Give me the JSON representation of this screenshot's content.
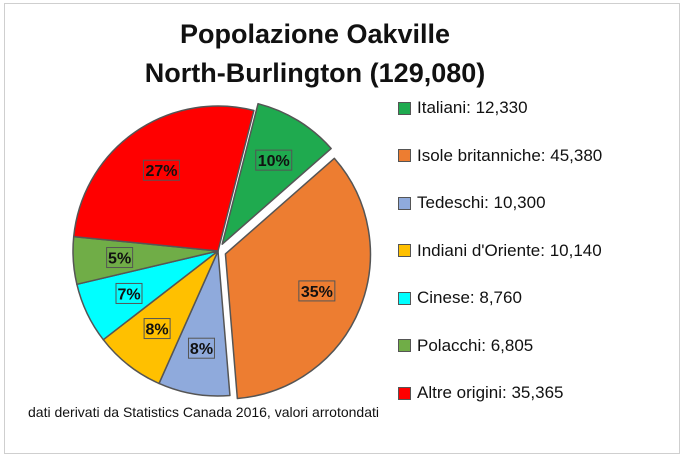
{
  "chart_data": {
    "type": "pie",
    "title": "Popolazione Oakville North-Burlington (129,080)",
    "title_lines": [
      "Popolazione Oakville",
      "North-Burlington (129,080)"
    ],
    "source_note": "dati derivati da Statistics Canada 2016, valori arrotondati",
    "legend_position": "right",
    "slices": [
      {
        "name": "Italiani",
        "value": 12330,
        "value_text": "12,330",
        "percent_label": "10%",
        "color": "#1faa4f",
        "exploded": true
      },
      {
        "name": "Isole britanniche",
        "value": 45380,
        "value_text": "45,380",
        "percent_label": "35%",
        "color": "#ed7d31",
        "exploded": true
      },
      {
        "name": "Tedeschi",
        "value": 10300,
        "value_text": "10,300",
        "percent_label": "8%",
        "color": "#8faadc",
        "exploded": false
      },
      {
        "name": "Indiani d'Oriente",
        "value": 10140,
        "value_text": "10,140",
        "percent_label": "8%",
        "color": "#ffc000",
        "exploded": false
      },
      {
        "name": "Cinese",
        "value": 8760,
        "value_text": "8,760",
        "percent_label": "7%",
        "color": "#00ffff",
        "exploded": false
      },
      {
        "name": "Polacchi",
        "value": 6805,
        "value_text": "6,805",
        "percent_label": "5%",
        "color": "#70ad47",
        "exploded": false
      },
      {
        "name": "Altre origini",
        "value": 35365,
        "value_text": "35,365",
        "percent_label": "27%",
        "color": "#ff0000",
        "exploded": false
      }
    ]
  }
}
